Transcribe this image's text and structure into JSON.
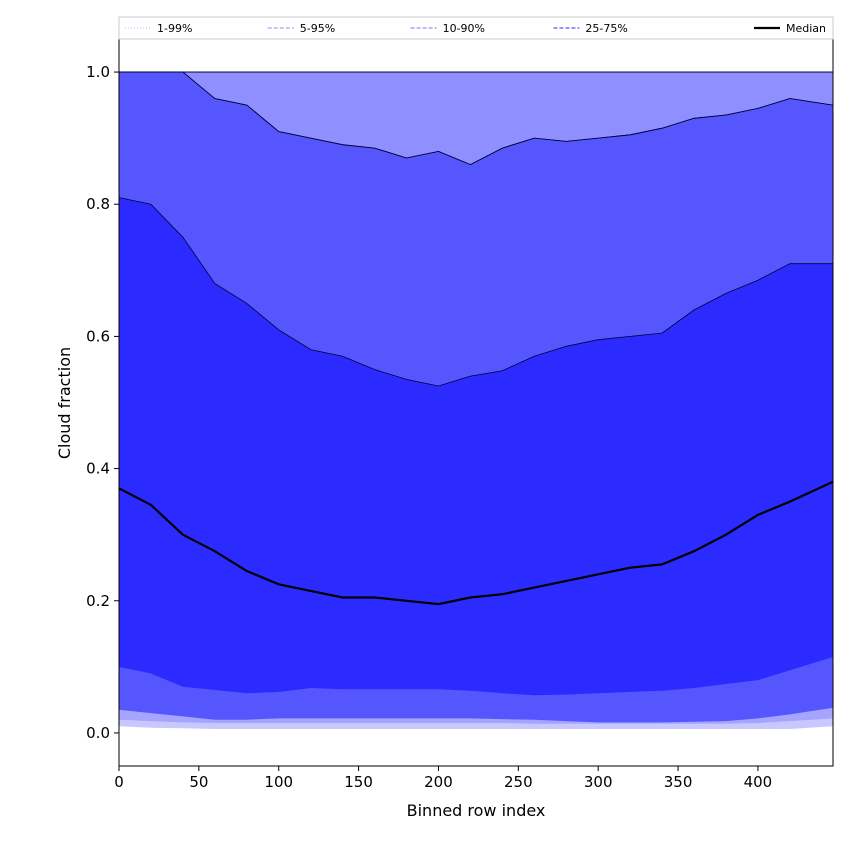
{
  "chart_data": {
    "type": "area",
    "xlabel": "Binned row index",
    "ylabel": "Cloud fraction",
    "xlim": [
      0,
      447
    ],
    "ylim": [
      -0.05,
      1.05
    ],
    "xticks": [
      0,
      50,
      100,
      150,
      200,
      250,
      300,
      350,
      400
    ],
    "yticks": [
      0.0,
      0.2,
      0.4,
      0.6,
      0.8,
      1.0
    ],
    "grid": false,
    "legend_position": "top, spanning full width above plot",
    "colors": {
      "band_1_99": "#c8c8ff",
      "band_5_95": "#a5a5ff",
      "band_10_90": "#5656ff",
      "band_25_75": "#2b2bff",
      "upper_1_99": "#8f8fff",
      "median_line": "#000000"
    },
    "legend": [
      {
        "label": "1-99%",
        "style": "dotted",
        "color": "#c8c8ff"
      },
      {
        "label": "5-95%",
        "style": "dashed",
        "color": "#a5a5ff"
      },
      {
        "label": "10-90%",
        "style": "dashed",
        "color": "#8f8fff"
      },
      {
        "label": "25-75%",
        "style": "dashed",
        "color": "#5656ff"
      },
      {
        "label": "Median",
        "style": "solid",
        "color": "#000000"
      }
    ],
    "x": [
      0,
      20,
      40,
      60,
      80,
      100,
      120,
      140,
      160,
      180,
      200,
      220,
      240,
      260,
      280,
      300,
      320,
      340,
      360,
      380,
      400,
      420,
      447
    ],
    "series": [
      {
        "name": "1-99%",
        "lower": [
          0.01,
          0.008,
          0.007,
          0.006,
          0.006,
          0.006,
          0.006,
          0.006,
          0.006,
          0.006,
          0.006,
          0.006,
          0.006,
          0.006,
          0.006,
          0.006,
          0.006,
          0.006,
          0.006,
          0.006,
          0.006,
          0.006,
          0.01
        ],
        "upper": [
          1.0,
          1.0,
          1.0,
          1.0,
          1.0,
          1.0,
          1.0,
          1.0,
          1.0,
          1.0,
          1.0,
          1.0,
          1.0,
          1.0,
          1.0,
          1.0,
          1.0,
          1.0,
          1.0,
          1.0,
          1.0,
          1.0,
          1.0
        ]
      },
      {
        "name": "5-95%",
        "lower": [
          0.02,
          0.018,
          0.016,
          0.015,
          0.015,
          0.015,
          0.015,
          0.015,
          0.015,
          0.015,
          0.015,
          0.015,
          0.015,
          0.014,
          0.014,
          0.014,
          0.014,
          0.014,
          0.014,
          0.014,
          0.015,
          0.018,
          0.022
        ],
        "upper": [
          1.0,
          1.0,
          1.0,
          0.96,
          0.95,
          0.91,
          0.9,
          0.89,
          0.885,
          0.87,
          0.88,
          0.86,
          0.885,
          0.9,
          0.895,
          0.9,
          0.905,
          0.915,
          0.93,
          0.935,
          0.945,
          0.96,
          0.95
        ]
      },
      {
        "name": "10-90%",
        "lower": [
          0.035,
          0.03,
          0.025,
          0.02,
          0.02,
          0.022,
          0.022,
          0.022,
          0.022,
          0.022,
          0.022,
          0.022,
          0.021,
          0.02,
          0.018,
          0.016,
          0.016,
          0.016,
          0.017,
          0.018,
          0.022,
          0.028,
          0.038
        ],
        "upper": [
          1.0,
          1.0,
          1.0,
          0.96,
          0.95,
          0.91,
          0.9,
          0.89,
          0.885,
          0.87,
          0.88,
          0.86,
          0.885,
          0.9,
          0.895,
          0.9,
          0.905,
          0.915,
          0.93,
          0.935,
          0.945,
          0.96,
          0.95
        ]
      },
      {
        "name": "25-75%",
        "lower": [
          0.1,
          0.09,
          0.07,
          0.065,
          0.06,
          0.062,
          0.068,
          0.066,
          0.066,
          0.066,
          0.066,
          0.064,
          0.06,
          0.057,
          0.058,
          0.06,
          0.062,
          0.064,
          0.068,
          0.074,
          0.08,
          0.095,
          0.115
        ],
        "upper": [
          0.81,
          0.8,
          0.75,
          0.68,
          0.65,
          0.61,
          0.58,
          0.57,
          0.55,
          0.535,
          0.525,
          0.54,
          0.548,
          0.57,
          0.585,
          0.595,
          0.6,
          0.605,
          0.64,
          0.665,
          0.685,
          0.71,
          0.71
        ]
      },
      {
        "name": "Median",
        "values": [
          0.37,
          0.345,
          0.3,
          0.275,
          0.245,
          0.225,
          0.215,
          0.205,
          0.205,
          0.2,
          0.195,
          0.205,
          0.21,
          0.22,
          0.23,
          0.24,
          0.25,
          0.255,
          0.275,
          0.3,
          0.33,
          0.35,
          0.38
        ]
      }
    ]
  }
}
